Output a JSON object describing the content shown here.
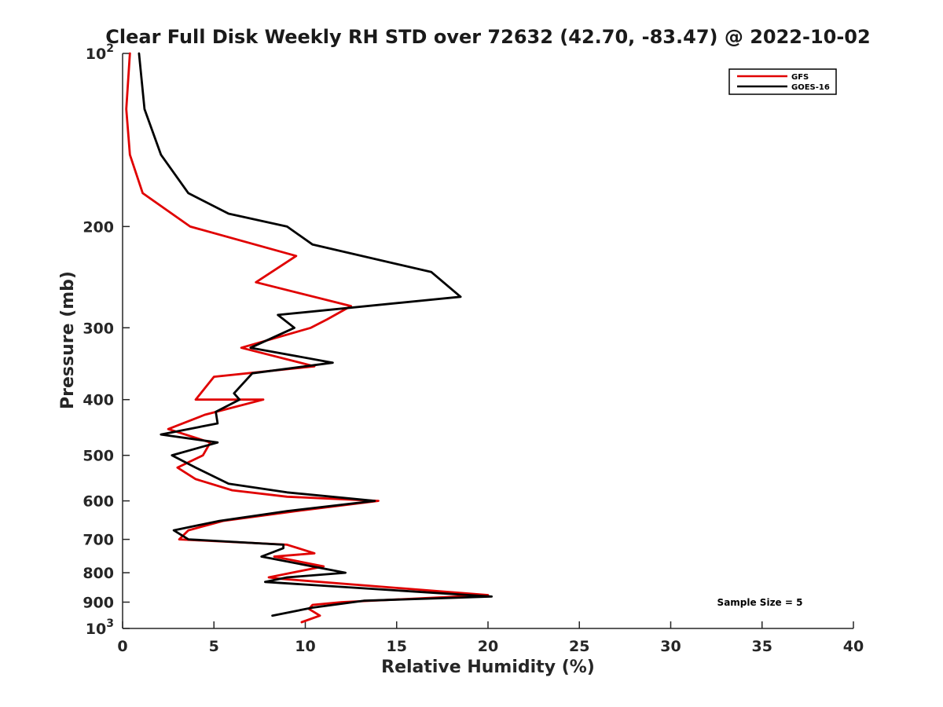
{
  "chart_data": {
    "type": "line",
    "title": "Clear Full Disk Weekly RH STD over 72632 (42.70, -83.47) @ 2022-10-02",
    "xlabel": "Relative Humidity (%)",
    "ylabel": "Pressure (mb)",
    "xlim": [
      0,
      40
    ],
    "ylim": [
      100,
      1000
    ],
    "y_scale": "log",
    "y_reversed": true,
    "x_ticks": [
      "0",
      "5",
      "10",
      "15",
      "20",
      "25",
      "30",
      "35",
      "40"
    ],
    "y_ticks": [
      {
        "value": 100,
        "base": "10",
        "exp": "2"
      },
      {
        "value": 200,
        "label": "200"
      },
      {
        "value": 300,
        "label": "300"
      },
      {
        "value": 400,
        "label": "400"
      },
      {
        "value": 500,
        "label": "500"
      },
      {
        "value": 600,
        "label": "600"
      },
      {
        "value": 700,
        "label": "700"
      },
      {
        "value": 800,
        "label": "800"
      },
      {
        "value": 900,
        "label": "900"
      },
      {
        "value": 1000,
        "base": "10",
        "exp": "3"
      }
    ],
    "grid": false,
    "legend_position": "top-right",
    "annotation": "Sample Size = 5",
    "series": [
      {
        "name": "GFS",
        "color": "#e00000",
        "points": [
          [
            0.4,
            100
          ],
          [
            0.2,
            125
          ],
          [
            0.4,
            150
          ],
          [
            1.1,
            175
          ],
          [
            3.7,
            200
          ],
          [
            9.5,
            225
          ],
          [
            7.3,
            250
          ],
          [
            12.5,
            275
          ],
          [
            11.2,
            290
          ],
          [
            10.3,
            300
          ],
          [
            6.5,
            325
          ],
          [
            10.5,
            350
          ],
          [
            5.0,
            365
          ],
          [
            4.0,
            400
          ],
          [
            7.7,
            400
          ],
          [
            4.5,
            425
          ],
          [
            2.5,
            450
          ],
          [
            4.8,
            475
          ],
          [
            4.4,
            500
          ],
          [
            3.0,
            525
          ],
          [
            4.0,
            550
          ],
          [
            6.0,
            575
          ],
          [
            9.0,
            590
          ],
          [
            14.0,
            600
          ],
          [
            9.5,
            625
          ],
          [
            5.5,
            650
          ],
          [
            3.6,
            675
          ],
          [
            3.1,
            700
          ],
          [
            9.0,
            715
          ],
          [
            10.5,
            740
          ],
          [
            8.3,
            750
          ],
          [
            11.0,
            780
          ],
          [
            8.0,
            815
          ],
          [
            8.7,
            820
          ],
          [
            20.0,
            875
          ],
          [
            12.0,
            900
          ],
          [
            10.4,
            910
          ],
          [
            10.2,
            925
          ],
          [
            10.8,
            950
          ],
          [
            9.8,
            975
          ]
        ]
      },
      {
        "name": "GOES-16",
        "color": "#000000",
        "points": [
          [
            0.9,
            100
          ],
          [
            1.2,
            125
          ],
          [
            2.1,
            150
          ],
          [
            3.6,
            175
          ],
          [
            5.8,
            190
          ],
          [
            9.0,
            200
          ],
          [
            10.4,
            215
          ],
          [
            16.9,
            240
          ],
          [
            18.5,
            265
          ],
          [
            8.5,
            285
          ],
          [
            9.4,
            300
          ],
          [
            7.0,
            325
          ],
          [
            11.5,
            345
          ],
          [
            7.1,
            360
          ],
          [
            6.1,
            390
          ],
          [
            6.4,
            400
          ],
          [
            5.1,
            420
          ],
          [
            5.2,
            440
          ],
          [
            2.1,
            460
          ],
          [
            5.2,
            475
          ],
          [
            2.7,
            500
          ],
          [
            4.0,
            525
          ],
          [
            5.8,
            560
          ],
          [
            9.0,
            580
          ],
          [
            13.8,
            600
          ],
          [
            9.0,
            625
          ],
          [
            5.3,
            650
          ],
          [
            2.8,
            675
          ],
          [
            3.6,
            700
          ],
          [
            8.8,
            715
          ],
          [
            8.8,
            725
          ],
          [
            7.6,
            750
          ],
          [
            12.2,
            800
          ],
          [
            9.0,
            815
          ],
          [
            7.8,
            830
          ],
          [
            20.2,
            880
          ],
          [
            13.2,
            895
          ],
          [
            10.4,
            920
          ],
          [
            8.2,
            950
          ]
        ]
      }
    ]
  }
}
